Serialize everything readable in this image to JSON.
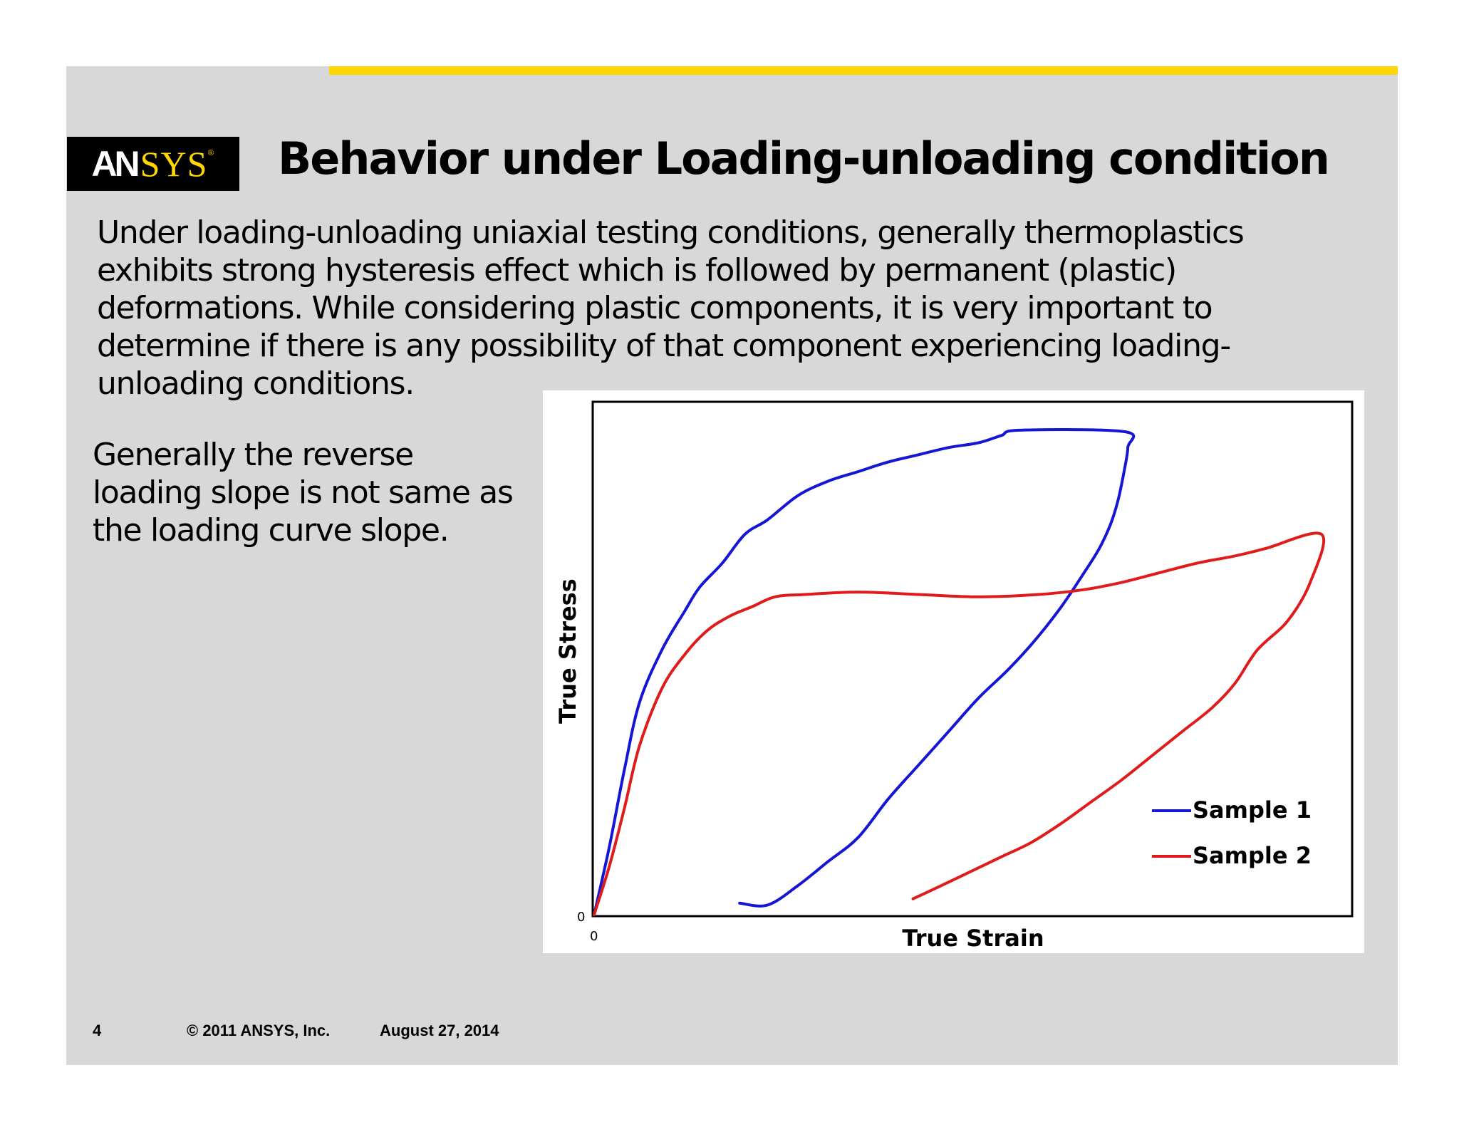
{
  "header": {
    "logo_text": "ANSYS",
    "title": "Behavior under Loading-unloading condition"
  },
  "body": {
    "paragraph_lines": [
      "Under loading-unloading uniaxial testing conditions, generally thermoplastics",
      "exhibits strong hysteresis effect which is followed by permanent (plastic)",
      "deformations. While considering plastic components, it is very important  to",
      "determine if there is any possibility of that component experiencing loading-",
      "unloading conditions."
    ],
    "side_lines": [
      "Generally the reverse",
      "loading slope is not same as",
      "the loading curve slope."
    ]
  },
  "footer": {
    "page_number": "4",
    "copyright": "© 2011 ANSYS, Inc.",
    "date": "August 27, 2014"
  },
  "colors": {
    "accent_yellow": "#ffd600",
    "slide_bg": "#d8d8d9",
    "sample1": "#1515d6",
    "sample2": "#e01b1b"
  },
  "chart_data": {
    "type": "line",
    "title": "",
    "xlabel": "True Strain",
    "ylabel": "True Stress",
    "x_tick_labels": [
      "0"
    ],
    "y_tick_labels": [
      "0"
    ],
    "xlim": [
      0,
      100
    ],
    "ylim": [
      0,
      100
    ],
    "grid": false,
    "legend_position": "bottom-right",
    "series": [
      {
        "name": "Sample 1",
        "x": [
          0,
          2,
          4,
          6,
          9,
          12,
          14,
          17,
          20,
          23,
          27,
          31,
          35,
          39,
          43,
          47,
          51,
          54,
          56.5,
          70.4,
          70.8,
          70.3,
          69.5,
          68.5,
          67,
          65,
          62,
          58.5,
          55,
          51,
          47,
          43,
          39,
          35,
          31,
          27,
          23,
          19.3
        ],
        "y": [
          0,
          14,
          30,
          44,
          55,
          63,
          68,
          73,
          79,
          82,
          87,
          90,
          92,
          94,
          95.5,
          97,
          98,
          99.5,
          100.6,
          100.3,
          97,
          92,
          86,
          81,
          76,
          71,
          64,
          57,
          51,
          45,
          38,
          31,
          24,
          16,
          11,
          6,
          2,
          2.4
        ]
      },
      {
        "name": "Sample 2",
        "x": [
          0,
          2,
          4,
          6,
          9,
          12,
          15,
          18,
          21,
          24,
          28,
          35,
          43,
          51,
          59,
          65,
          70,
          75,
          80,
          85,
          89,
          96.5,
          95,
          92,
          88,
          85,
          82,
          78,
          74,
          70,
          66,
          62,
          58,
          54,
          50,
          46,
          42.3
        ],
        "y": [
          0,
          10,
          22,
          35,
          47,
          54,
          59,
          62,
          64,
          66,
          66.5,
          67,
          66.5,
          66,
          66.5,
          67.5,
          69,
          71,
          73,
          74.5,
          76,
          79,
          69,
          61,
          55,
          48,
          43,
          38,
          33,
          28,
          23.5,
          19,
          15,
          12,
          9,
          6,
          3.3
        ]
      }
    ]
  }
}
